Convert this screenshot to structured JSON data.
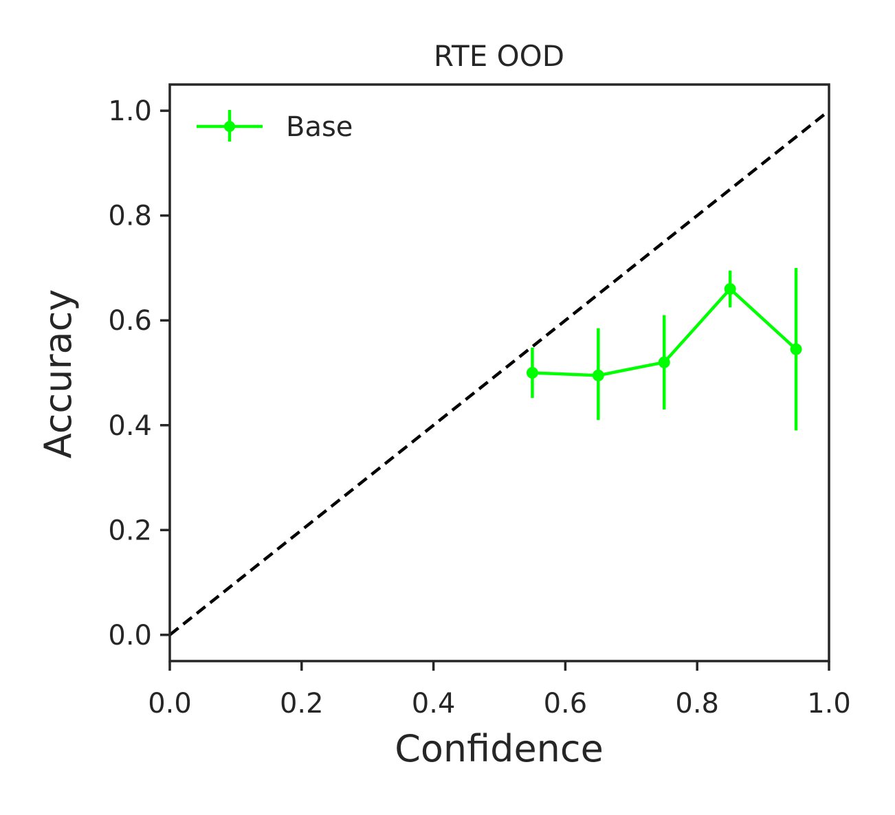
{
  "chart_data": {
    "type": "line",
    "title": "RTE OOD",
    "xlabel": "Confidence",
    "ylabel": "Accuracy",
    "xlim": [
      0.0,
      1.0
    ],
    "ylim": [
      -0.05,
      1.05
    ],
    "xticks": [
      "0.0",
      "0.2",
      "0.4",
      "0.6",
      "0.8",
      "1.0"
    ],
    "yticks": [
      "0.0",
      "0.2",
      "0.4",
      "0.6",
      "0.8",
      "1.0"
    ],
    "grid": false,
    "legend_position": "upper-left",
    "reference_line": {
      "style": "dashed",
      "color": "#000000",
      "x": [
        0.0,
        1.0
      ],
      "y": [
        0.0,
        1.0
      ]
    },
    "series": [
      {
        "name": "Base",
        "color": "#00ff00",
        "x": [
          0.55,
          0.65,
          0.75,
          0.85,
          0.95
        ],
        "y": [
          0.5,
          0.495,
          0.52,
          0.66,
          0.545
        ],
        "y_err_low": [
          0.452,
          0.41,
          0.43,
          0.625,
          0.39
        ],
        "y_err_high": [
          0.548,
          0.585,
          0.61,
          0.695,
          0.7
        ]
      }
    ]
  }
}
